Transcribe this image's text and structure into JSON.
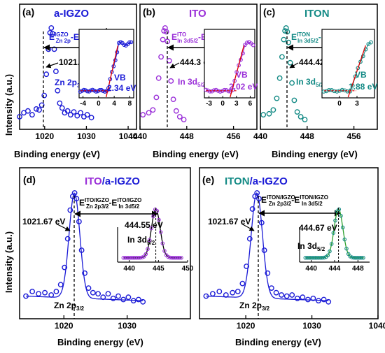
{
  "ylabel": "Intensity (a.u.)",
  "xlabel": "Binding energy (eV)",
  "chart_data": [
    {
      "panel": "(a)",
      "material": "a-IGZO",
      "type": "scatter",
      "xlim": [
        1014,
        1042
      ],
      "xticks": [
        "1020",
        "1030",
        "1040"
      ],
      "peak_label": "Zn 2p3/2",
      "peak_value": "1021.55 eV",
      "energy_label": "E(IGZO, Zn 2p) - E(IGZO, VBM)",
      "inset": {
        "xticks": [
          "-4",
          "0",
          "4",
          "8"
        ],
        "vb_label": "VB",
        "vb_value": "2.34 eV"
      },
      "peak_center": 1021.55,
      "peak_width": 1.1,
      "x": [
        1014,
        1015,
        1016,
        1017,
        1018,
        1018.7,
        1019.3,
        1019.9,
        1020.4,
        1020.9,
        1021.3,
        1021.6,
        1021.9,
        1022.3,
        1022.7,
        1023.1,
        1023.6,
        1024.2,
        1024.8,
        1025.5,
        1026.2,
        1027,
        1027.8,
        1028.6,
        1029.4,
        1030.2,
        1031.2
      ],
      "y": [
        0.08,
        0.12,
        0.14,
        0.1,
        0.16,
        0.15,
        0.2,
        0.3,
        0.52,
        0.78,
        0.95,
        1,
        0.94,
        0.78,
        0.55,
        0.35,
        0.22,
        0.17,
        0.12,
        0.14,
        0.1,
        0.13,
        0.09,
        0.12,
        0.08,
        0.1,
        0.07
      ]
    },
    {
      "panel": "(b)",
      "material": "ITO",
      "type": "scatter",
      "xlim": [
        440,
        460
      ],
      "xticks": [
        "440",
        "448",
        "456"
      ],
      "peak_label": "In 3d5/2",
      "peak_value": "444.3 eV",
      "energy_label": "E(ITO, In 3d5/2) - E(ITO, VBM)",
      "inset": {
        "xticks": [
          "-3",
          "0",
          "3",
          "6"
        ],
        "vb_label": "VB",
        "vb_value": "2.02 eV"
      },
      "peak_center": 444.3,
      "peak_width": 0.7,
      "x": [
        440.5,
        441.5,
        442.2,
        442.8,
        443.2,
        443.6,
        443.9,
        444.1,
        444.3,
        444.5,
        444.7,
        445,
        445.3,
        445.7,
        446.2,
        446.8,
        447.5
      ],
      "y": [
        0.1,
        0.12,
        0.15,
        0.28,
        0.48,
        0.7,
        0.88,
        0.97,
        1,
        0.96,
        0.86,
        0.66,
        0.45,
        0.26,
        0.14,
        0.08,
        0.05
      ]
    },
    {
      "panel": "(c)",
      "material": "ITON",
      "type": "scatter",
      "xlim": [
        440,
        460
      ],
      "xticks": [
        "440",
        "448",
        "456"
      ],
      "peak_label": "In 3d5/2",
      "peak_value": "444.42 eV",
      "energy_label": "E(ITON, In 3d5/2) - E(ITON, VBM)",
      "inset": {
        "xticks": [
          "0",
          "3"
        ],
        "vb_label": "VB",
        "vb_value": "1.88 eV"
      },
      "peak_center": 444.42,
      "peak_width": 0.7,
      "x": [
        440.5,
        441.5,
        442.2,
        442.8,
        443.3,
        443.7,
        444,
        444.2,
        444.4,
        444.6,
        444.8,
        445.1,
        445.4,
        445.8,
        446.3,
        446.9,
        447.6
      ],
      "y": [
        0.1,
        0.11,
        0.15,
        0.27,
        0.48,
        0.7,
        0.88,
        0.97,
        1,
        0.96,
        0.85,
        0.64,
        0.43,
        0.25,
        0.13,
        0.08,
        0.05
      ]
    },
    {
      "panel": "(d)",
      "material": "ITO/a-IGZO",
      "type": "line",
      "xlim": [
        1013,
        1040
      ],
      "xticks": [
        "1020",
        "1030"
      ],
      "peak_label": "Zn 2p3/2",
      "peak_value": "1021.67 eV",
      "energy_label": "E(ITO/IGZO, Zn 2p3/2) - E(ITO/IGZO, In 3d5/2)",
      "inset": {
        "xticks": [
          "440",
          "445",
          "450"
        ],
        "peak_label": "In 3d5/2",
        "peak_value": "444.55 eV",
        "xlim": [
          438,
          450
        ],
        "peak_center": 444.55,
        "peak_width": 0.75
      },
      "peak_center": 1021.67,
      "peak_width": 0.85,
      "x": [
        1014,
        1015,
        1016,
        1017,
        1018,
        1018.8,
        1019.5,
        1020.1,
        1020.6,
        1021,
        1021.4,
        1021.7,
        1022,
        1022.4,
        1022.8,
        1023.3,
        1023.9,
        1024.6,
        1025.4,
        1026.2,
        1027,
        1027.8,
        1028.6,
        1029.4,
        1030.2,
        1031,
        1031.8,
        1032.5
      ],
      "y": [
        0.1,
        0.14,
        0.12,
        0.13,
        0.11,
        0.14,
        0.2,
        0.35,
        0.6,
        0.85,
        0.97,
        1,
        0.95,
        0.75,
        0.5,
        0.3,
        0.17,
        0.13,
        0.12,
        0.09,
        0.12,
        0.08,
        0.1,
        0.07,
        0.09,
        0.06,
        0.07,
        0.05
      ]
    },
    {
      "panel": "(e)",
      "material": "ITON/a-IGZO",
      "type": "line",
      "xlim": [
        1013,
        1040
      ],
      "xticks": [
        "1020",
        "1030",
        "1040"
      ],
      "peak_label": "Zn 2p3/2",
      "peak_value": "1021.67 eV",
      "energy_label": "E(ITON/IGZO, Zn 2p3/2) - E(ITON/IGZO, In 3d5/2)",
      "inset": {
        "xticks": [
          "440",
          "444",
          "448"
        ],
        "peak_label": "In 3d5/2",
        "peak_value": "444.67 eV",
        "xlim": [
          438,
          450
        ],
        "peak_center": 444.67,
        "peak_width": 0.75
      },
      "peak_center": 1021.67,
      "peak_width": 0.85,
      "x": [
        1014,
        1015,
        1016,
        1017,
        1018,
        1018.8,
        1019.5,
        1020.1,
        1020.6,
        1021,
        1021.4,
        1021.7,
        1022,
        1022.4,
        1022.8,
        1023.3,
        1023.9,
        1024.6,
        1025.4,
        1026.2,
        1027,
        1027.8,
        1028.6,
        1029.4,
        1030.2,
        1031,
        1031.8,
        1032.5
      ],
      "y": [
        0.1,
        0.12,
        0.14,
        0.11,
        0.13,
        0.14,
        0.21,
        0.36,
        0.6,
        0.86,
        0.97,
        1,
        0.95,
        0.74,
        0.5,
        0.3,
        0.17,
        0.13,
        0.11,
        0.1,
        0.11,
        0.08,
        0.09,
        0.07,
        0.08,
        0.06,
        0.07,
        0.05
      ]
    }
  ],
  "colors": {
    "igzo": "#1a1ad6",
    "ito": "#9a2fd8",
    "iton": "#138a85",
    "fit": "#2ca02c",
    "red": "#e00000"
  }
}
